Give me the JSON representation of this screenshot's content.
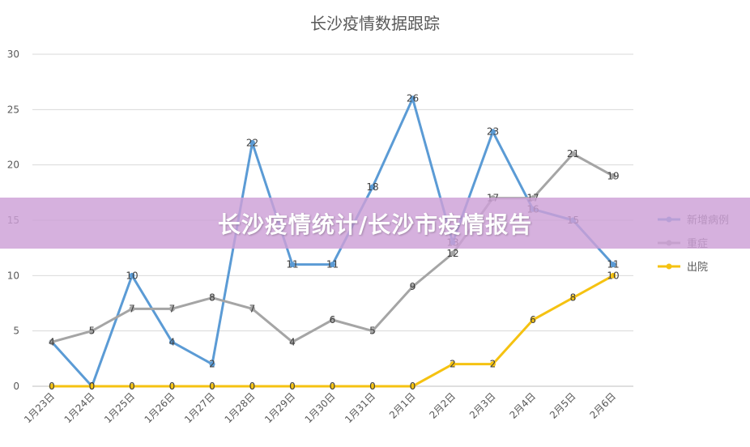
{
  "chart_data": {
    "type": "line",
    "title": "长沙疫情数据跟踪",
    "xlabel": "",
    "ylabel": "",
    "ylim": [
      0,
      30
    ],
    "yticks": [
      0,
      5,
      10,
      15,
      20,
      25,
      30
    ],
    "grid": true,
    "legend_position": "right",
    "categories": [
      "1月23日",
      "1月24日",
      "1月25日",
      "1月26日",
      "1月27日",
      "1月28日",
      "1月29日",
      "1月30日",
      "1月31日",
      "2月1日",
      "2月2日",
      "2月3日",
      "2月4日",
      "2月5日",
      "2月6日"
    ],
    "series": [
      {
        "name": "新增病例",
        "color": "#5b9bd5",
        "values": [
          4,
          0,
          10,
          4,
          2,
          22,
          11,
          11,
          18,
          26,
          13,
          23,
          16,
          15,
          11
        ]
      },
      {
        "name": "重症",
        "color": "#a5a5a5",
        "values": [
          4,
          5,
          7,
          7,
          8,
          7,
          4,
          6,
          5,
          9,
          12,
          17,
          17,
          21,
          19
        ]
      },
      {
        "name": "出院",
        "color": "#f5c211",
        "values": [
          0,
          0,
          0,
          0,
          0,
          0,
          0,
          0,
          0,
          0,
          2,
          2,
          6,
          8,
          10
        ]
      }
    ]
  },
  "overlay": {
    "banner_text": "长沙疫情统计/长沙市疫情报告"
  }
}
